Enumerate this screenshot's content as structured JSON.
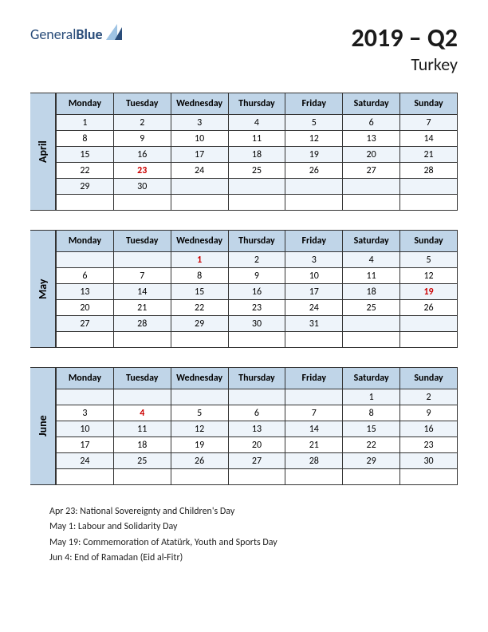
{
  "logo": {
    "text_a": "General",
    "text_b": "Blue",
    "brand_color": "#2a4d7a",
    "icon_color_light": "#9fc4e4",
    "icon_color_dark": "#2a4d7a"
  },
  "title": {
    "main": "2019 – Q2",
    "sub": "Turkey"
  },
  "colors": {
    "header_bg": "#c0d5e8",
    "row_alt_bg": "#eef4fa",
    "border": "#333333",
    "body_text": "#000000",
    "holiday_text": "#cc0000",
    "page_bg": "#ffffff"
  },
  "fonts": {
    "body_size": 12,
    "day_header_size": 12,
    "month_tab_size": 14,
    "title_main_size": 32,
    "title_sub_size": 22
  },
  "day_headers": [
    "Monday",
    "Tuesday",
    "Wednesday",
    "Thursday",
    "Friday",
    "Saturday",
    "Sunday"
  ],
  "months": [
    {
      "name": "April",
      "rows": [
        [
          {
            "d": "1"
          },
          {
            "d": "2"
          },
          {
            "d": "3"
          },
          {
            "d": "4"
          },
          {
            "d": "5"
          },
          {
            "d": "6"
          },
          {
            "d": "7"
          }
        ],
        [
          {
            "d": "8"
          },
          {
            "d": "9"
          },
          {
            "d": "10"
          },
          {
            "d": "11"
          },
          {
            "d": "12"
          },
          {
            "d": "13"
          },
          {
            "d": "14"
          }
        ],
        [
          {
            "d": "15"
          },
          {
            "d": "16"
          },
          {
            "d": "17"
          },
          {
            "d": "18"
          },
          {
            "d": "19"
          },
          {
            "d": "20"
          },
          {
            "d": "21"
          }
        ],
        [
          {
            "d": "22"
          },
          {
            "d": "23",
            "h": true
          },
          {
            "d": "24"
          },
          {
            "d": "25"
          },
          {
            "d": "26"
          },
          {
            "d": "27"
          },
          {
            "d": "28"
          }
        ],
        [
          {
            "d": "29"
          },
          {
            "d": "30"
          },
          {
            "d": ""
          },
          {
            "d": ""
          },
          {
            "d": ""
          },
          {
            "d": ""
          },
          {
            "d": ""
          }
        ],
        [
          {
            "d": ""
          },
          {
            "d": ""
          },
          {
            "d": ""
          },
          {
            "d": ""
          },
          {
            "d": ""
          },
          {
            "d": ""
          },
          {
            "d": ""
          }
        ]
      ]
    },
    {
      "name": "May",
      "rows": [
        [
          {
            "d": ""
          },
          {
            "d": ""
          },
          {
            "d": "1",
            "h": true
          },
          {
            "d": "2"
          },
          {
            "d": "3"
          },
          {
            "d": "4"
          },
          {
            "d": "5"
          }
        ],
        [
          {
            "d": "6"
          },
          {
            "d": "7"
          },
          {
            "d": "8"
          },
          {
            "d": "9"
          },
          {
            "d": "10"
          },
          {
            "d": "11"
          },
          {
            "d": "12"
          }
        ],
        [
          {
            "d": "13"
          },
          {
            "d": "14"
          },
          {
            "d": "15"
          },
          {
            "d": "16"
          },
          {
            "d": "17"
          },
          {
            "d": "18"
          },
          {
            "d": "19",
            "h": true
          }
        ],
        [
          {
            "d": "20"
          },
          {
            "d": "21"
          },
          {
            "d": "22"
          },
          {
            "d": "23"
          },
          {
            "d": "24"
          },
          {
            "d": "25"
          },
          {
            "d": "26"
          }
        ],
        [
          {
            "d": "27"
          },
          {
            "d": "28"
          },
          {
            "d": "29"
          },
          {
            "d": "30"
          },
          {
            "d": "31"
          },
          {
            "d": ""
          },
          {
            "d": ""
          }
        ],
        [
          {
            "d": ""
          },
          {
            "d": ""
          },
          {
            "d": ""
          },
          {
            "d": ""
          },
          {
            "d": ""
          },
          {
            "d": ""
          },
          {
            "d": ""
          }
        ]
      ]
    },
    {
      "name": "June",
      "rows": [
        [
          {
            "d": ""
          },
          {
            "d": ""
          },
          {
            "d": ""
          },
          {
            "d": ""
          },
          {
            "d": ""
          },
          {
            "d": "1"
          },
          {
            "d": "2"
          }
        ],
        [
          {
            "d": "3"
          },
          {
            "d": "4",
            "h": true
          },
          {
            "d": "5"
          },
          {
            "d": "6"
          },
          {
            "d": "7"
          },
          {
            "d": "8"
          },
          {
            "d": "9"
          }
        ],
        [
          {
            "d": "10"
          },
          {
            "d": "11"
          },
          {
            "d": "12"
          },
          {
            "d": "13"
          },
          {
            "d": "14"
          },
          {
            "d": "15"
          },
          {
            "d": "16"
          }
        ],
        [
          {
            "d": "17"
          },
          {
            "d": "18"
          },
          {
            "d": "19"
          },
          {
            "d": "20"
          },
          {
            "d": "21"
          },
          {
            "d": "22"
          },
          {
            "d": "23"
          }
        ],
        [
          {
            "d": "24"
          },
          {
            "d": "25"
          },
          {
            "d": "26"
          },
          {
            "d": "27"
          },
          {
            "d": "28"
          },
          {
            "d": "29"
          },
          {
            "d": "30"
          }
        ],
        [
          {
            "d": ""
          },
          {
            "d": ""
          },
          {
            "d": ""
          },
          {
            "d": ""
          },
          {
            "d": ""
          },
          {
            "d": ""
          },
          {
            "d": ""
          }
        ]
      ]
    }
  ],
  "holidays": [
    "Apr 23: National Sovereignty and Children's Day",
    "May 1: Labour and Solidarity Day",
    "May 19: Commemoration of Atatürk, Youth and Sports Day",
    "Jun 4: End of Ramadan (Eid al-Fitr)"
  ]
}
